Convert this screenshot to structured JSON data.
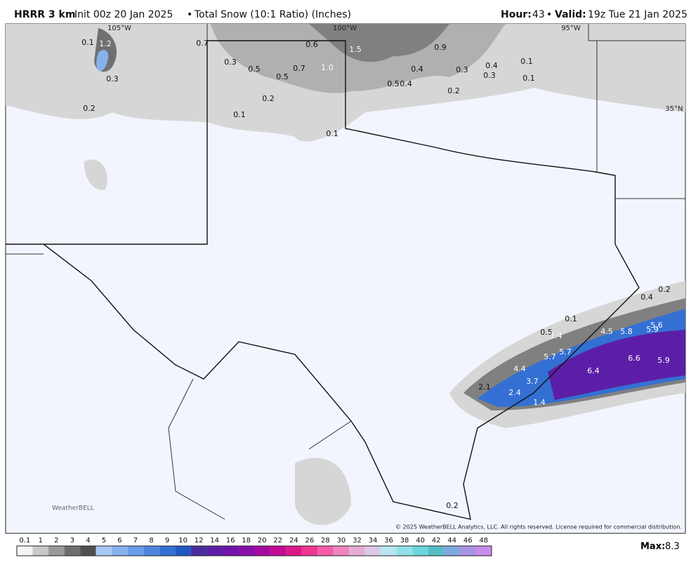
{
  "header": {
    "model": "HRRR 3 km",
    "init": "Init 00z 20 Jan 2025",
    "separator": "•",
    "product": "Total Snow (10:1 Ratio) (Inches)",
    "hour_label": "Hour:",
    "hour": "43",
    "valid_label": "Valid:",
    "valid": "19z Tue 21 Jan 2025"
  },
  "map": {
    "lon_labels": [
      "105°W",
      "100°W",
      "95°W"
    ],
    "lat_labels": [
      "35°N"
    ],
    "amounts": [
      "0.1",
      "1.2",
      "0.3",
      "0.2",
      "0.7",
      "0.3",
      "0.5",
      "0.6",
      "0.7",
      "0.5",
      "1.0",
      "0.2",
      "0.1",
      "0.1",
      "1.5",
      "0.9",
      "0.4",
      "0.3",
      "0.4",
      "0.3",
      "0.1",
      "0.1",
      "0.5",
      "0.4",
      "0.2",
      "0.2",
      "0.4",
      "0.1",
      "0.5",
      "1.4",
      "4.5",
      "5.8",
      "5.6",
      "5.9",
      "5.7",
      "5.7",
      "6.6",
      "5.9",
      "4.4",
      "6.4",
      "3.7",
      "2.1",
      "2.4",
      "1.4",
      "0.2"
    ]
  },
  "footer": {
    "logo": "WeatherBELL",
    "copyright": "© 2025 WeatherBELL Analytics, LLC. All rights reserved. License required for commercial distribution."
  },
  "colorbar": {
    "labels": [
      "0.1",
      "1",
      "2",
      "3",
      "4",
      "5",
      "6",
      "7",
      "8",
      "9",
      "10",
      "12",
      "14",
      "16",
      "18",
      "20",
      "22",
      "24",
      "26",
      "28",
      "30",
      "32",
      "34",
      "36",
      "38",
      "40",
      "42",
      "44",
      "46",
      "48"
    ],
    "colors": [
      "#f4f4f4",
      "#c8c8c8",
      "#9a9a9a",
      "#6e6e6e",
      "#505050",
      "#a8c8f4",
      "#88b2ee",
      "#6a9ce8",
      "#4e86e0",
      "#3470d4",
      "#2058c4",
      "#4a2c9c",
      "#5c1ea6",
      "#7014aa",
      "#880eaa",
      "#a40aa2",
      "#c20c96",
      "#dc1888",
      "#ec3690",
      "#f25ca8",
      "#ee84be",
      "#e6aad4",
      "#dcc8e6",
      "#b8e6f0",
      "#90e2e8",
      "#6cd4dc",
      "#56bcc4",
      "#80a8e0",
      "#a894e4",
      "#c88cea"
    ]
  },
  "max_label": "Max:",
  "max": "8.3"
}
